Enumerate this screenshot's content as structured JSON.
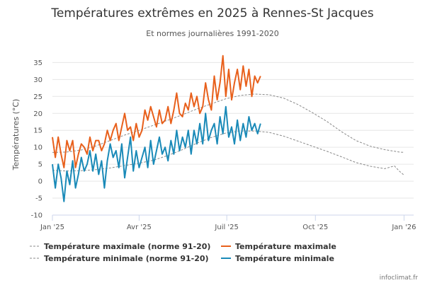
{
  "chart_data": {
    "type": "line",
    "title": "Températures extrêmes en 2025 à Rennes-St Jacques",
    "subtitle": "Et normes journalières 1991-2020",
    "ylabel": "Températures (°C)",
    "xlabel": "",
    "ylim": [
      -10,
      38
    ],
    "yticks": [
      -10,
      -5,
      0,
      5,
      10,
      15,
      20,
      25,
      30,
      35
    ],
    "xlim_days": [
      0,
      375
    ],
    "xticks": [
      {
        "day": 0,
        "label": "Jan '25"
      },
      {
        "day": 90,
        "label": "Avr '25"
      },
      {
        "day": 181,
        "label": "Juil '25"
      },
      {
        "day": 273,
        "label": "Oct '25"
      },
      {
        "day": 365,
        "label": "Jan '26"
      }
    ],
    "grid": true,
    "legend_position": "bottom",
    "credit": "infoclimat.fr",
    "series": [
      {
        "name": "Température maximale (norme 91-20)",
        "color": "#8a8a8a",
        "dash": "dashed",
        "x": [
          0,
          15,
          30,
          45,
          60,
          75,
          90,
          105,
          120,
          135,
          150,
          165,
          180,
          195,
          210,
          225,
          240,
          255,
          270,
          285,
          300,
          315,
          330,
          345,
          360,
          365
        ],
        "y": [
          8.5,
          8.6,
          9.2,
          10.4,
          12.0,
          13.6,
          15.0,
          16.5,
          18.0,
          19.6,
          21.3,
          22.8,
          24.3,
          25.3,
          25.7,
          25.5,
          24.5,
          22.6,
          20.2,
          17.6,
          14.6,
          12.0,
          10.3,
          9.3,
          8.6,
          8.5
        ]
      },
      {
        "name": "Température maximale",
        "color": "#e8601c",
        "dash": "solid",
        "x": [
          0,
          3,
          6,
          9,
          12,
          15,
          18,
          21,
          24,
          27,
          30,
          33,
          36,
          39,
          42,
          45,
          48,
          51,
          54,
          57,
          60,
          63,
          66,
          69,
          72,
          75,
          78,
          81,
          84,
          87,
          90,
          93,
          96,
          99,
          102,
          105,
          108,
          111,
          114,
          117,
          120,
          123,
          126,
          129,
          132,
          135,
          138,
          141,
          144,
          147,
          150,
          153,
          156,
          159,
          162,
          165,
          168,
          171,
          174,
          177,
          180,
          183,
          186,
          189,
          192,
          195,
          198,
          201,
          204,
          207,
          210,
          213,
          216
        ],
        "y": [
          13,
          7,
          13,
          8,
          4,
          12,
          9,
          12,
          4,
          8,
          11,
          10,
          8,
          13,
          9,
          12,
          12,
          9,
          11,
          15,
          12,
          15,
          17,
          12,
          16,
          20,
          15,
          16,
          12,
          17,
          13,
          15,
          21,
          18,
          22,
          19,
          16,
          21,
          17,
          18,
          22,
          17,
          21,
          26,
          20,
          19,
          23,
          21,
          26,
          22,
          25,
          20,
          22,
          29,
          24,
          21,
          31,
          24,
          29,
          37,
          25,
          33,
          24,
          29,
          33,
          27,
          34,
          28,
          33,
          25,
          31,
          29,
          31
        ]
      },
      {
        "name": "Température minimale (norme 91-20)",
        "color": "#8a8a8a",
        "dash": "dashed",
        "x": [
          0,
          15,
          30,
          45,
          60,
          75,
          90,
          105,
          120,
          135,
          150,
          165,
          180,
          195,
          210,
          225,
          240,
          255,
          270,
          285,
          300,
          315,
          330,
          345,
          355,
          360,
          365
        ],
        "y": [
          3.2,
          3.0,
          3.1,
          3.4,
          3.9,
          4.6,
          5.3,
          6.2,
          7.6,
          9.3,
          11.2,
          12.9,
          14.2,
          14.8,
          14.8,
          14.4,
          13.3,
          11.8,
          10.3,
          8.8,
          7.2,
          5.5,
          4.4,
          3.7,
          4.5,
          3.0,
          1.8
        ]
      },
      {
        "name": "Température minimale",
        "color": "#1a8ab8",
        "dash": "solid",
        "x": [
          0,
          3,
          6,
          9,
          12,
          15,
          18,
          21,
          24,
          27,
          30,
          33,
          36,
          39,
          42,
          45,
          48,
          51,
          54,
          57,
          60,
          63,
          66,
          69,
          72,
          75,
          78,
          81,
          84,
          87,
          90,
          93,
          96,
          99,
          102,
          105,
          108,
          111,
          114,
          117,
          120,
          123,
          126,
          129,
          132,
          135,
          138,
          141,
          144,
          147,
          150,
          153,
          156,
          159,
          162,
          165,
          168,
          171,
          174,
          177,
          180,
          183,
          186,
          189,
          192,
          195,
          198,
          201,
          204,
          207,
          210,
          213,
          216
        ],
        "y": [
          5,
          -2,
          5,
          1,
          -6,
          3,
          -1,
          6,
          -2,
          2,
          7,
          3,
          5,
          9,
          3,
          8,
          2,
          6,
          -2,
          6,
          11,
          7,
          9,
          4,
          11,
          1,
          7,
          13,
          3,
          9,
          4,
          7,
          10,
          4,
          12,
          5,
          9,
          13,
          8,
          10,
          6,
          12,
          8,
          15,
          9,
          13,
          10,
          15,
          8,
          15,
          11,
          17,
          11,
          20,
          12,
          15,
          17,
          11,
          19,
          14,
          22,
          13,
          16,
          11,
          18,
          12,
          17,
          13,
          19,
          15,
          17,
          14,
          17
        ]
      }
    ],
    "legend": [
      {
        "label": "Température maximale (norme 91-20)",
        "color": "#8a8a8a",
        "dash": "dashed"
      },
      {
        "label": "Température maximale",
        "color": "#e8601c",
        "dash": "solid"
      },
      {
        "label": "Température minimale (norme 91-20)",
        "color": "#8a8a8a",
        "dash": "dashed"
      },
      {
        "label": "Température minimale",
        "color": "#1a8ab8",
        "dash": "solid"
      }
    ]
  }
}
